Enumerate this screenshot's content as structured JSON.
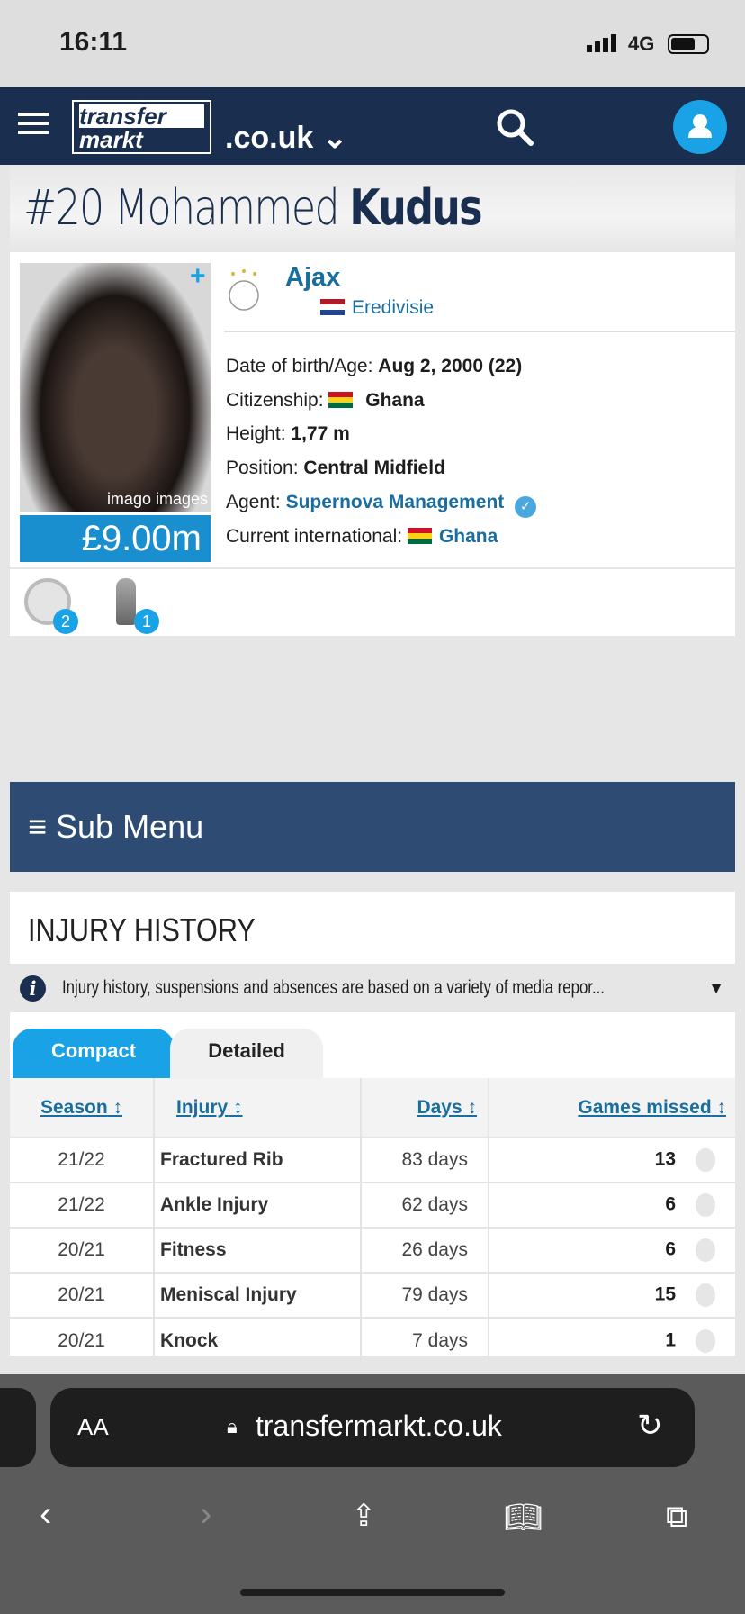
{
  "status": {
    "time": "16:11",
    "network": "4G"
  },
  "nav": {
    "logo_top": "transfer",
    "logo_bottom": "markt",
    "domain": ".co.uk"
  },
  "player": {
    "number": "#20",
    "first_name": "Mohammed",
    "last_name": "Kudus",
    "photo_credit": "imago images",
    "market_value": "£9.00m",
    "club": "Ajax",
    "league": "Eredivisie",
    "facts": {
      "dob_label": "Date of birth/Age:",
      "dob": "Aug 2, 2000 (22)",
      "citizenship_label": "Citizenship:",
      "citizenship": "Ghana",
      "height_label": "Height:",
      "height": "1,77 m",
      "position_label": "Position:",
      "position": "Central Midfield",
      "agent_label": "Agent:",
      "agent": "Supernova Management",
      "intl_label": "Current international:",
      "intl": "Ghana"
    },
    "trophies": [
      {
        "icon": "league-plate-icon",
        "count": "2"
      },
      {
        "icon": "cup-trophy-icon",
        "count": "1"
      }
    ]
  },
  "submenu": {
    "label": "≡ Sub Menu"
  },
  "injury": {
    "title": "INJURY HISTORY",
    "note": "Injury history, suspensions and absences are based on a variety of media repor...",
    "tabs": [
      "Compact",
      "Detailed"
    ],
    "active_tab": "Compact",
    "columns": [
      "Season",
      "Injury",
      "Days",
      "Games missed"
    ],
    "rows": [
      {
        "season": "21/22",
        "injury": "Fractured Rib",
        "days": "83 days",
        "games": "13"
      },
      {
        "season": "21/22",
        "injury": "Ankle Injury",
        "days": "62 days",
        "games": "6"
      },
      {
        "season": "20/21",
        "injury": "Fitness",
        "days": "26 days",
        "games": "6"
      },
      {
        "season": "20/21",
        "injury": "Meniscal Injury",
        "days": "79 days",
        "games": "15"
      },
      {
        "season": "20/21",
        "injury": "Knock",
        "days": "7 days",
        "games": "1"
      }
    ]
  },
  "browser": {
    "aa": "AA",
    "url": "transfermarkt.co.uk"
  },
  "colors": {
    "nav": "#1a2f50",
    "accent": "#19a3e6",
    "link": "#1a6e9f",
    "submenu": "#2e4c73"
  }
}
